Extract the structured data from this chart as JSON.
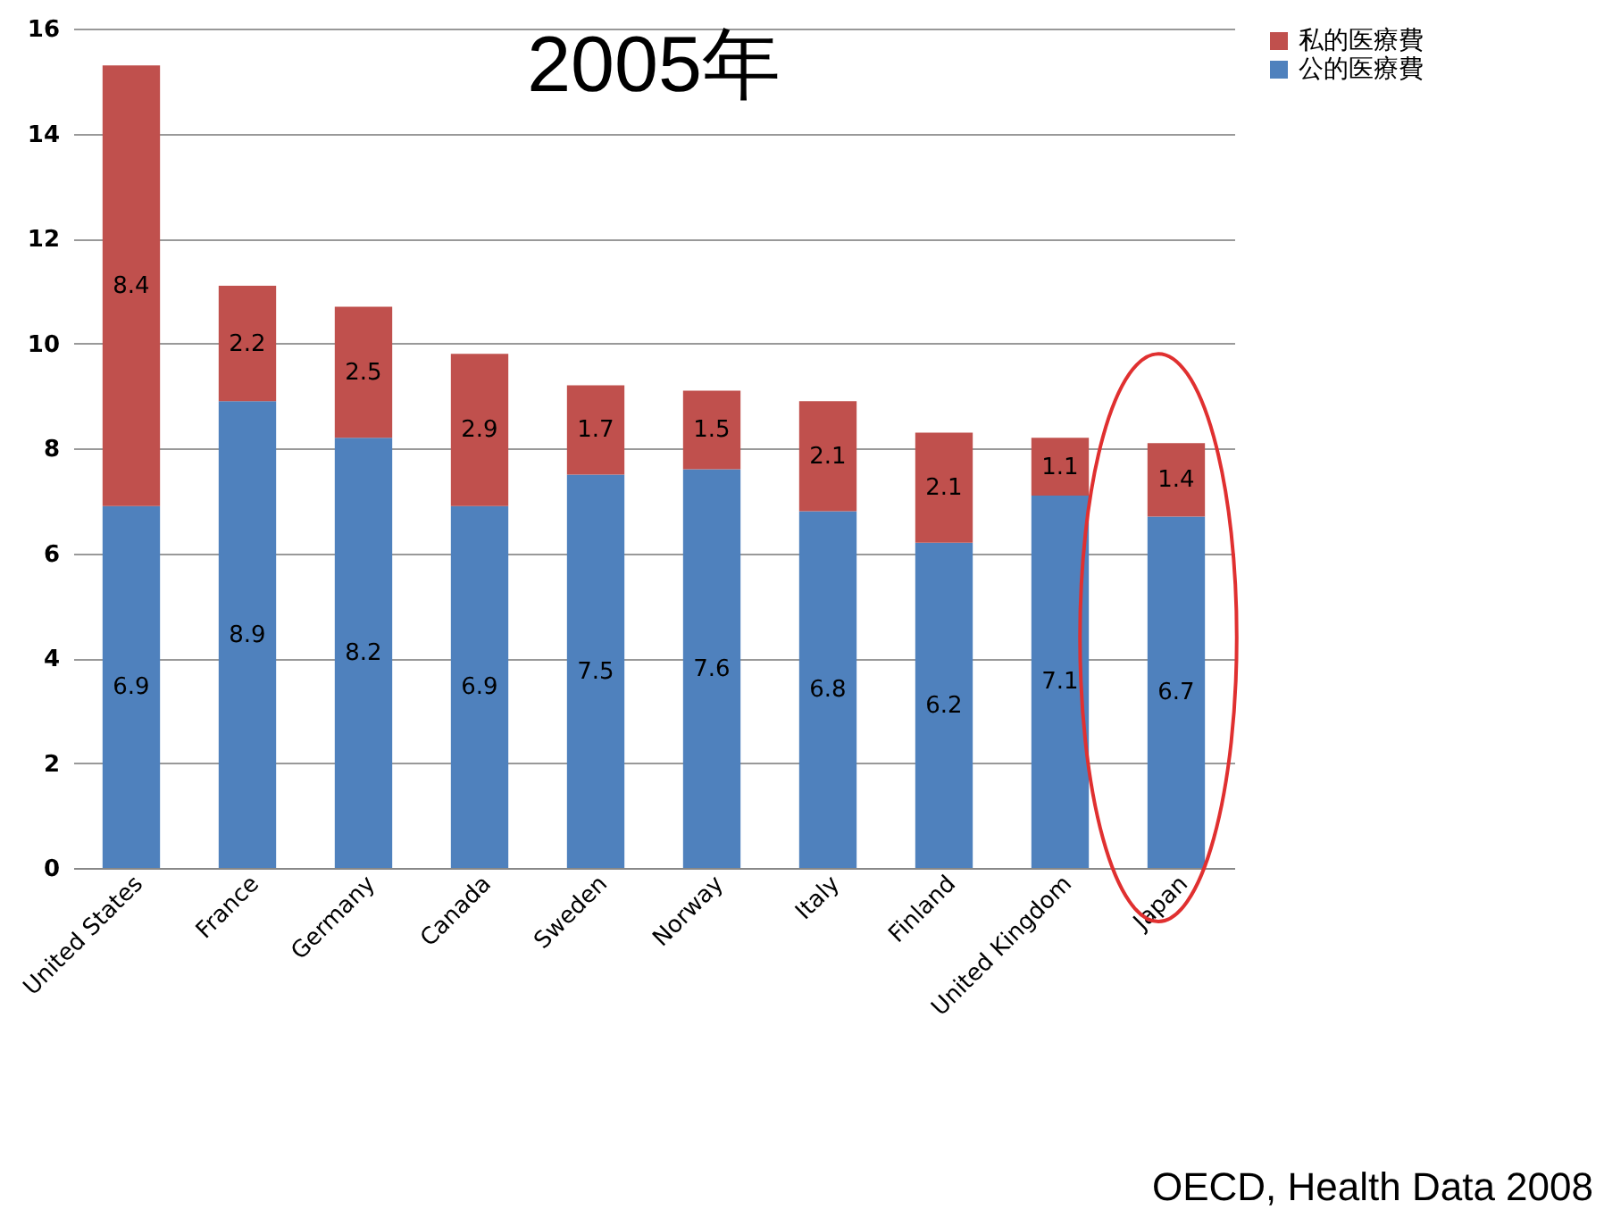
{
  "chart_data": {
    "type": "bar",
    "title": "2005年",
    "stacked": true,
    "categories": [
      "United States",
      "France",
      "Germany",
      "Canada",
      "Sweden",
      "Norway",
      "Italy",
      "Finland",
      "United Kingdom",
      "Japan"
    ],
    "series": [
      {
        "name": "公的医療費",
        "color": "#4f81bd",
        "values": [
          6.9,
          8.9,
          8.2,
          6.9,
          7.5,
          7.6,
          6.8,
          6.2,
          7.1,
          6.7
        ]
      },
      {
        "name": "私的医療費",
        "color": "#c0504d",
        "values": [
          8.4,
          2.2,
          2.5,
          2.9,
          1.7,
          1.5,
          2.1,
          2.1,
          1.1,
          1.4
        ]
      }
    ],
    "ylim": [
      0,
      16
    ],
    "yticks": [
      0,
      2,
      4,
      6,
      8,
      10,
      12,
      14,
      16
    ],
    "grid": "y",
    "legend": "right",
    "data_labels": true,
    "annotations": [
      "OECD, Health Data 2008"
    ]
  }
}
